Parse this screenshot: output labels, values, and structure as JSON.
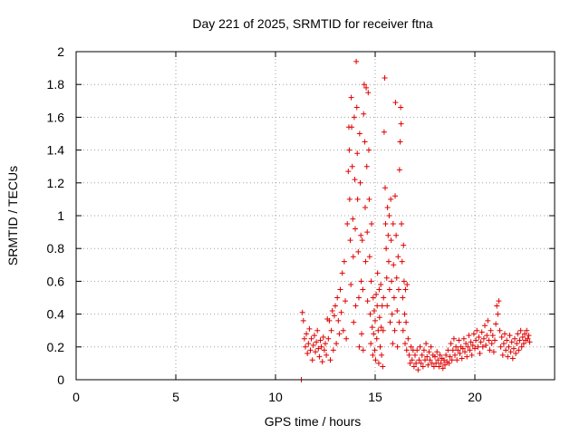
{
  "chart_data": {
    "type": "scatter",
    "title": "Day 221 of 2025, SRMTID for receiver ftna",
    "xlabel": "GPS time / hours",
    "ylabel": "SRMTID / TECUs",
    "xlim": [
      0,
      24
    ],
    "ylim": [
      0,
      2
    ],
    "xticks": [
      0,
      5,
      10,
      15,
      20
    ],
    "xtick_labels": [
      "0",
      "5",
      "10",
      "15",
      "20"
    ],
    "yticks": [
      0,
      0.2,
      0.4,
      0.6,
      0.8,
      1.0,
      1.2,
      1.4,
      1.6,
      1.8,
      2.0
    ],
    "ytick_labels": [
      "0",
      "0.2",
      "0.4",
      "0.6",
      "0.8",
      "1",
      "1.2",
      "1.4",
      "1.6",
      "1.8",
      "2"
    ],
    "grid": true,
    "marker": "plus",
    "color": "#e00000",
    "series": [
      {
        "name": "ftna",
        "points": [
          [
            11.3,
            0.0
          ],
          [
            11.35,
            0.41
          ],
          [
            11.4,
            0.36
          ],
          [
            11.45,
            0.25
          ],
          [
            11.5,
            0.2
          ],
          [
            11.55,
            0.28
          ],
          [
            11.6,
            0.16
          ],
          [
            11.65,
            0.22
          ],
          [
            11.7,
            0.31
          ],
          [
            11.75,
            0.18
          ],
          [
            11.8,
            0.25
          ],
          [
            11.85,
            0.12
          ],
          [
            11.9,
            0.21
          ],
          [
            11.95,
            0.27
          ],
          [
            12.0,
            0.17
          ],
          [
            12.05,
            0.23
          ],
          [
            12.1,
            0.3
          ],
          [
            12.15,
            0.19
          ],
          [
            12.2,
            0.14
          ],
          [
            12.25,
            0.24
          ],
          [
            12.3,
            0.2
          ],
          [
            12.35,
            0.11
          ],
          [
            12.4,
            0.26
          ],
          [
            12.45,
            0.18
          ],
          [
            12.5,
            0.22
          ],
          [
            12.55,
            0.15
          ],
          [
            12.6,
            0.37
          ],
          [
            12.65,
            0.25
          ],
          [
            12.7,
            0.36
          ],
          [
            12.75,
            0.12
          ],
          [
            12.8,
            0.3
          ],
          [
            12.85,
            0.42
          ],
          [
            12.9,
            0.18
          ],
          [
            12.95,
            0.39
          ],
          [
            13.0,
            0.45
          ],
          [
            13.05,
            0.22
          ],
          [
            13.1,
            0.5
          ],
          [
            13.15,
            0.36
          ],
          [
            13.2,
            0.28
          ],
          [
            13.25,
            0.55
          ],
          [
            13.3,
            0.41
          ],
          [
            13.35,
            0.65
          ],
          [
            13.4,
            0.3
          ],
          [
            13.45,
            0.72
          ],
          [
            13.5,
            0.48
          ],
          [
            13.55,
            0.25
          ],
          [
            13.6,
            0.95
          ],
          [
            13.65,
            1.27
          ],
          [
            13.68,
            1.54
          ],
          [
            13.7,
            1.4
          ],
          [
            13.72,
            1.1
          ],
          [
            13.75,
            0.85
          ],
          [
            13.78,
            0.58
          ],
          [
            13.8,
            1.72
          ],
          [
            13.82,
            1.54
          ],
          [
            13.85,
            1.3
          ],
          [
            13.88,
            0.98
          ],
          [
            13.9,
            0.75
          ],
          [
            13.92,
            0.35
          ],
          [
            13.95,
            1.6
          ],
          [
            13.98,
            1.22
          ],
          [
            14.0,
            0.92
          ],
          [
            14.02,
            0.45
          ],
          [
            14.05,
            1.94
          ],
          [
            14.08,
            1.66
          ],
          [
            14.1,
            1.38
          ],
          [
            14.12,
            1.1
          ],
          [
            14.15,
            0.78
          ],
          [
            14.18,
            0.5
          ],
          [
            14.2,
            0.2
          ],
          [
            14.22,
            1.5
          ],
          [
            14.25,
            1.2
          ],
          [
            14.28,
            0.88
          ],
          [
            14.3,
            0.6
          ],
          [
            14.32,
            0.28
          ],
          [
            14.35,
            0.85
          ],
          [
            14.38,
            0.55
          ],
          [
            14.4,
            0.18
          ],
          [
            14.42,
            1.62
          ],
          [
            14.45,
            1.8
          ],
          [
            14.48,
            1.45
          ],
          [
            14.5,
            1.05
          ],
          [
            14.52,
            0.72
          ],
          [
            14.55,
            1.78
          ],
          [
            14.58,
            1.3
          ],
          [
            14.6,
            0.9
          ],
          [
            14.62,
            0.48
          ],
          [
            14.65,
            1.75
          ],
          [
            14.68,
            1.4
          ],
          [
            14.7,
            1.1
          ],
          [
            14.72,
            0.75
          ],
          [
            14.75,
            0.4
          ],
          [
            14.78,
            0.22
          ],
          [
            14.8,
            0.6
          ],
          [
            14.82,
            0.95
          ],
          [
            14.85,
            0.32
          ],
          [
            14.88,
            0.15
          ],
          [
            14.9,
            0.5
          ],
          [
            14.92,
            0.28
          ],
          [
            14.95,
            0.42
          ],
          [
            14.98,
            0.18
          ],
          [
            15.0,
            0.36
          ],
          [
            15.02,
            0.12
          ],
          [
            15.05,
            0.52
          ],
          [
            15.08,
            0.25
          ],
          [
            15.1,
            0.45
          ],
          [
            15.12,
            0.65
          ],
          [
            15.15,
            0.3
          ],
          [
            15.18,
            0.1
          ],
          [
            15.2,
            0.55
          ],
          [
            15.22,
            0.38
          ],
          [
            15.25,
            0.2
          ],
          [
            15.28,
            0.58
          ],
          [
            15.3,
            0.32
          ],
          [
            15.32,
            0.15
          ],
          [
            15.35,
            0.45
          ],
          [
            15.38,
            0.08
          ],
          [
            15.4,
            0.3
          ],
          [
            15.42,
            0.5
          ],
          [
            15.45,
            1.51
          ],
          [
            15.48,
            1.84
          ],
          [
            15.5,
            1.17
          ],
          [
            15.52,
            0.95
          ],
          [
            15.55,
            0.8
          ],
          [
            15.58,
            0.62
          ],
          [
            15.6,
            0.45
          ],
          [
            15.62,
            1.05
          ],
          [
            15.65,
            0.88
          ],
          [
            15.68,
            0.72
          ],
          [
            15.7,
            1.0
          ],
          [
            15.72,
            0.55
          ],
          [
            15.75,
            0.35
          ],
          [
            15.78,
            1.1
          ],
          [
            15.8,
            0.85
          ],
          [
            15.82,
            0.6
          ],
          [
            15.85,
            0.4
          ],
          [
            15.88,
            0.22
          ],
          [
            15.9,
            0.95
          ],
          [
            15.92,
            0.7
          ],
          [
            15.95,
            0.5
          ],
          [
            15.98,
            0.3
          ],
          [
            16.0,
            1.12
          ],
          [
            16.02,
            1.69
          ],
          [
            16.05,
            0.88
          ],
          [
            16.08,
            0.62
          ],
          [
            16.1,
            0.42
          ],
          [
            16.12,
            0.2
          ],
          [
            16.15,
            0.75
          ],
          [
            16.18,
            0.55
          ],
          [
            16.2,
            0.35
          ],
          [
            16.22,
            1.28
          ],
          [
            16.25,
            1.45
          ],
          [
            16.28,
            1.66
          ],
          [
            16.3,
            1.56
          ],
          [
            16.32,
            0.95
          ],
          [
            16.35,
            0.72
          ],
          [
            16.38,
            0.5
          ],
          [
            16.4,
            0.3
          ],
          [
            16.42,
            0.82
          ],
          [
            16.45,
            0.6
          ],
          [
            16.48,
            0.4
          ],
          [
            16.5,
            0.22
          ],
          [
            16.52,
            0.55
          ],
          [
            16.55,
            0.35
          ],
          [
            16.58,
            0.18
          ],
          [
            16.6,
            0.58
          ],
          [
            16.65,
            0.25
          ],
          [
            16.7,
            0.15
          ],
          [
            16.75,
            0.1
          ],
          [
            16.8,
            0.2
          ],
          [
            16.85,
            0.12
          ],
          [
            16.9,
            0.18
          ],
          [
            16.95,
            0.08
          ],
          [
            17.0,
            0.15
          ],
          [
            17.05,
            0.1
          ],
          [
            17.1,
            0.18
          ],
          [
            17.15,
            0.06
          ],
          [
            17.2,
            0.12
          ],
          [
            17.25,
            0.2
          ],
          [
            17.3,
            0.1
          ],
          [
            17.35,
            0.15
          ],
          [
            17.4,
            0.08
          ],
          [
            17.45,
            0.18
          ],
          [
            17.5,
            0.12
          ],
          [
            17.55,
            0.22
          ],
          [
            17.6,
            0.14
          ],
          [
            17.65,
            0.09
          ],
          [
            17.7,
            0.17
          ],
          [
            17.75,
            0.12
          ],
          [
            17.8,
            0.2
          ],
          [
            17.85,
            0.1
          ],
          [
            17.9,
            0.15
          ],
          [
            17.95,
            0.08
          ],
          [
            18.0,
            0.14
          ],
          [
            18.05,
            0.1
          ],
          [
            18.1,
            0.17
          ],
          [
            18.15,
            0.12
          ],
          [
            18.2,
            0.08
          ],
          [
            18.25,
            0.15
          ],
          [
            18.3,
            0.1
          ],
          [
            18.35,
            0.13
          ],
          [
            18.4,
            0.07
          ],
          [
            18.45,
            0.12
          ],
          [
            18.5,
            0.09
          ],
          [
            18.55,
            0.15
          ],
          [
            18.6,
            0.11
          ],
          [
            18.65,
            0.18
          ],
          [
            18.7,
            0.1
          ],
          [
            18.75,
            0.14
          ],
          [
            18.8,
            0.22
          ],
          [
            18.85,
            0.12
          ],
          [
            18.9,
            0.18
          ],
          [
            18.95,
            0.25
          ],
          [
            19.0,
            0.15
          ],
          [
            19.05,
            0.2
          ],
          [
            19.1,
            0.12
          ],
          [
            19.15,
            0.18
          ],
          [
            19.2,
            0.24
          ],
          [
            19.25,
            0.16
          ],
          [
            19.3,
            0.2
          ],
          [
            19.35,
            0.13
          ],
          [
            19.4,
            0.19
          ],
          [
            19.45,
            0.25
          ],
          [
            19.5,
            0.17
          ],
          [
            19.55,
            0.22
          ],
          [
            19.6,
            0.14
          ],
          [
            19.65,
            0.2
          ],
          [
            19.7,
            0.27
          ],
          [
            19.75,
            0.18
          ],
          [
            19.8,
            0.23
          ],
          [
            19.85,
            0.15
          ],
          [
            19.9,
            0.21
          ],
          [
            19.95,
            0.28
          ],
          [
            20.0,
            0.19
          ],
          [
            20.05,
            0.24
          ],
          [
            20.1,
            0.3
          ],
          [
            20.15,
            0.2
          ],
          [
            20.2,
            0.26
          ],
          [
            20.25,
            0.16
          ],
          [
            20.3,
            0.23
          ],
          [
            20.35,
            0.29
          ],
          [
            20.4,
            0.2
          ],
          [
            20.45,
            0.25
          ],
          [
            20.5,
            0.33
          ],
          [
            20.55,
            0.21
          ],
          [
            20.6,
            0.27
          ],
          [
            20.65,
            0.36
          ],
          [
            20.7,
            0.24
          ],
          [
            20.75,
            0.18
          ],
          [
            20.8,
            0.3
          ],
          [
            20.85,
            0.22
          ],
          [
            20.9,
            0.27
          ],
          [
            20.95,
            0.17
          ],
          [
            21.0,
            0.24
          ],
          [
            21.05,
            0.34
          ],
          [
            21.1,
            0.45
          ],
          [
            21.15,
            0.4
          ],
          [
            21.2,
            0.48
          ],
          [
            21.25,
            0.3
          ],
          [
            21.3,
            0.2
          ],
          [
            21.35,
            0.26
          ],
          [
            21.4,
            0.15
          ],
          [
            21.45,
            0.22
          ],
          [
            21.5,
            0.28
          ],
          [
            21.55,
            0.18
          ],
          [
            21.6,
            0.24
          ],
          [
            21.65,
            0.14
          ],
          [
            21.7,
            0.2
          ],
          [
            21.75,
            0.27
          ],
          [
            21.8,
            0.17
          ],
          [
            21.85,
            0.23
          ],
          [
            21.9,
            0.13
          ],
          [
            21.95,
            0.19
          ],
          [
            22.0,
            0.25
          ],
          [
            22.05,
            0.16
          ],
          [
            22.1,
            0.22
          ],
          [
            22.15,
            0.28
          ],
          [
            22.2,
            0.18
          ],
          [
            22.25,
            0.24
          ],
          [
            22.3,
            0.3
          ],
          [
            22.35,
            0.2
          ],
          [
            22.4,
            0.26
          ],
          [
            22.45,
            0.22
          ],
          [
            22.5,
            0.28
          ],
          [
            22.55,
            0.24
          ],
          [
            22.6,
            0.3
          ],
          [
            22.65,
            0.25
          ],
          [
            22.7,
            0.27
          ],
          [
            22.75,
            0.23
          ]
        ]
      }
    ]
  }
}
